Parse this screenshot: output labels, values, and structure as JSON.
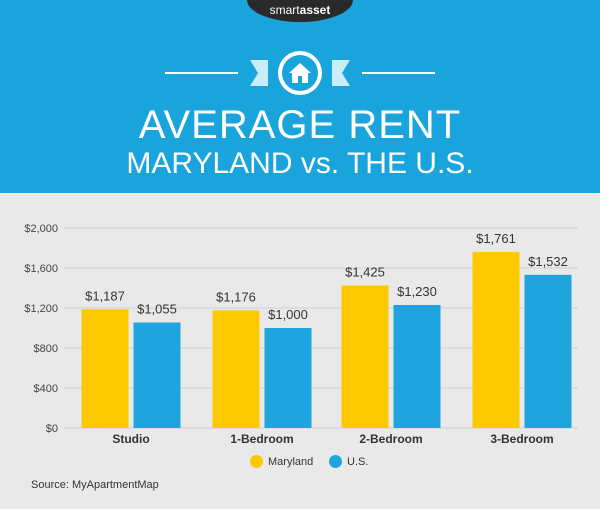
{
  "brand": {
    "light": "smart",
    "bold": "asset"
  },
  "title": {
    "line1": "AVERAGE RENT",
    "line2": "MARYLAND vs. THE U.S."
  },
  "icon": "house-icon",
  "colors": {
    "header": "#1aa4dc",
    "maryland": "#fcc900",
    "us": "#20a4dd",
    "background": "#e9e9e9"
  },
  "source": "Source: MyApartmentMap",
  "chart_data": {
    "type": "bar",
    "categories": [
      "Studio",
      "1-Bedroom",
      "2-Bedroom",
      "3-Bedroom"
    ],
    "series": [
      {
        "name": "Maryland",
        "values": [
          1187,
          1176,
          1425,
          1761
        ],
        "labels": [
          "$1,187",
          "$1,176",
          "$1,425",
          "$1,761"
        ]
      },
      {
        "name": "U.S.",
        "values": [
          1055,
          1000,
          1230,
          1532
        ],
        "labels": [
          "$1,055",
          "$1,000",
          "$1,230",
          "$1,532"
        ]
      }
    ],
    "ylim": [
      0,
      2000
    ],
    "yticks": [
      0,
      400,
      800,
      1200,
      1600,
      2000
    ],
    "ytick_labels": [
      "$0",
      "$400",
      "$800",
      "$1,200",
      "$1,600",
      "$2,000"
    ],
    "grid": true,
    "legend_position": "bottom"
  }
}
